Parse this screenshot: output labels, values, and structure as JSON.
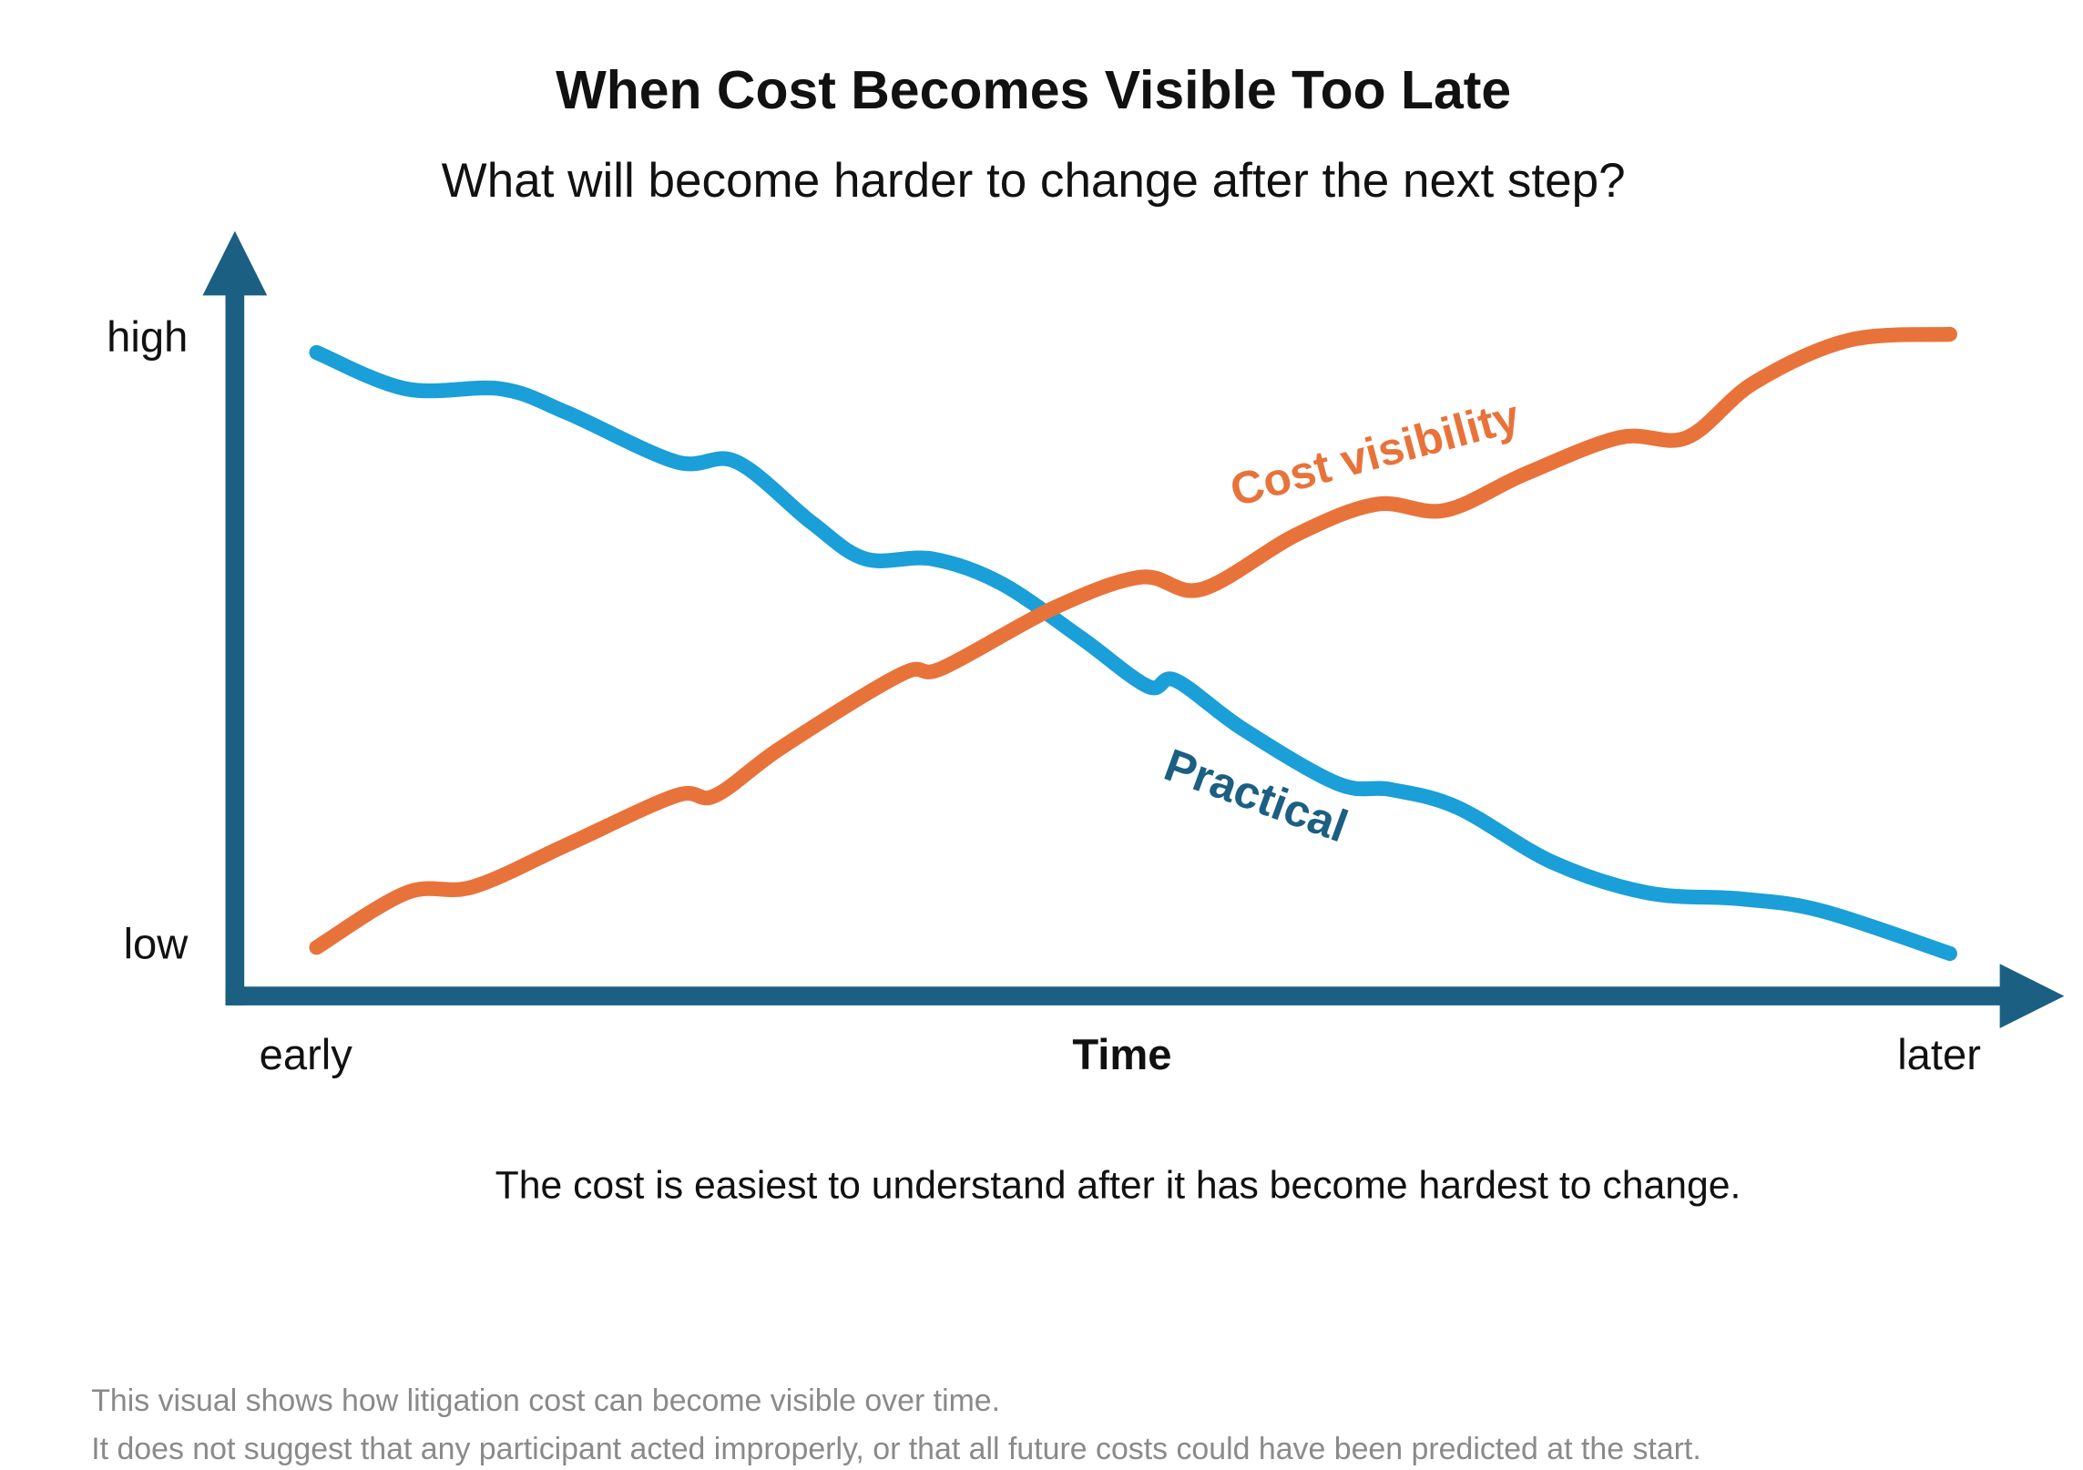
{
  "chart_data": {
    "type": "line",
    "title": "When Cost Becomes Visible Too Late",
    "subtitle": "What will become harder to change after the next step?",
    "x_label": "Time",
    "caption": "The cost is easiest to understand after it has become hardest to change.",
    "footnotes": [
      "This visual shows how litigation cost can become visible over time.",
      "It does not suggest that any participant acted improperly, or that all future costs could have been predicted at the start."
    ],
    "xlim": [
      -5,
      107
    ],
    "ylim": [
      -8,
      118
    ],
    "xticks": [
      {
        "value": 0,
        "label": "early"
      },
      {
        "value": 100,
        "label": "later"
      }
    ],
    "yticks": [
      {
        "value": 0,
        "label": "low"
      },
      {
        "value": 100,
        "label": "high"
      }
    ],
    "axis_color": "#1b5f82",
    "series": [
      {
        "name": "Practical",
        "color": "#1a9fd8",
        "label_color": "#1b5f82",
        "x": [
          0,
          5.5,
          11.3,
          15.4,
          22,
          25.7,
          30.3,
          33.6,
          37.7,
          41.9,
          46.8,
          50.9,
          52.6,
          56.7,
          62.5,
          65.8,
          69.9,
          75.7,
          81.5,
          87.2,
          92.2,
          100
        ],
        "values": [
          98,
          92,
          92,
          88,
          80,
          80,
          70,
          64,
          64,
          60,
          51,
          43,
          44,
          36,
          27,
          26,
          23,
          14,
          9,
          8,
          6,
          -1
        ]
      },
      {
        "name": "Cost visibility",
        "color": "#e8733a",
        "label_color": "#e8733a",
        "x": [
          0,
          5.5,
          9.6,
          15.4,
          22,
          24.4,
          28.5,
          35.8,
          38.3,
          45.2,
          50.5,
          54.2,
          60,
          64.9,
          69.1,
          74,
          79.8,
          83.9,
          88,
          93.8,
          100
        ],
        "values": [
          0,
          9,
          10,
          17,
          25,
          25,
          33,
          45,
          46,
          56,
          61,
          59,
          68,
          73,
          72,
          78,
          84,
          84,
          93,
          100,
          101
        ]
      }
    ]
  }
}
